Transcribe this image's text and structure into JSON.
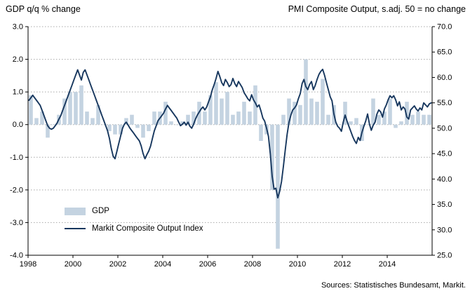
{
  "header": {
    "title_left": "GDP q/q % change",
    "title_right": "PMI Composite Output, s.adj. 50 = no change"
  },
  "legend": {
    "bar_label": "GDP",
    "line_label": "Markit Composite Output Index"
  },
  "footer": {
    "sources": "Sources: Statistisches Bundesamt, Markit."
  },
  "chart_data": {
    "type": "bar+line",
    "title": "GDP q/q % change vs PMI Composite Output",
    "colors": {
      "bar": "#c4d3e1",
      "line": "#17375e",
      "grid": "#a8a8a8",
      "axis": "#000000"
    },
    "left_axis": {
      "label": "GDP q/q % change",
      "max": 3.0,
      "min": -4.0,
      "ticks": [
        "3.0",
        "2.0",
        "1.0",
        "0.0",
        "-1.0",
        "-2.0",
        "-3.0",
        "-4.0"
      ]
    },
    "right_axis": {
      "label": "PMI Composite Output, s.adj. 50 = no change",
      "max": 70.0,
      "min": 25.0,
      "ticks": [
        "70.0",
        "65.0",
        "60.0",
        "55.0",
        "50.0",
        "45.0",
        "40.0",
        "35.0",
        "30.0",
        "25.0"
      ]
    },
    "x_axis": {
      "range": [
        1998,
        2016
      ],
      "ticks": [
        "1998",
        "2000",
        "2002",
        "2004",
        "2006",
        "2008",
        "2010",
        "2012",
        "2014"
      ]
    },
    "series_bar": {
      "name": "GDP",
      "unit": "q/q % change",
      "frequency": "quarterly",
      "start": 1998,
      "values": [
        0.9,
        0.2,
        0.4,
        -0.4,
        0.0,
        0.3,
        0.8,
        1.0,
        1.0,
        1.2,
        0.4,
        0.2,
        0.6,
        0.0,
        -0.2,
        -0.3,
        -0.3,
        0.2,
        0.3,
        -0.1,
        -0.4,
        -0.2,
        0.4,
        0.4,
        0.7,
        0.1,
        0.0,
        0.1,
        0.3,
        0.4,
        0.7,
        0.4,
        0.9,
        1.3,
        0.8,
        1.0,
        0.3,
        0.4,
        0.7,
        0.4,
        1.2,
        -0.5,
        -0.3,
        -2.0,
        -3.8,
        0.3,
        0.8,
        0.7,
        0.6,
        2.0,
        0.8,
        0.7,
        1.4,
        0.3,
        0.6,
        0.0,
        0.7,
        0.1,
        0.2,
        -0.5,
        0.0,
        0.8,
        0.3,
        0.4,
        0.8,
        -0.1,
        0.1,
        0.7,
        0.3,
        0.4,
        0.3,
        0.3
      ]
    },
    "series_line": {
      "name": "Markit Composite Output Index",
      "unit": "index, 50 = no change",
      "frequency": "monthly",
      "start": 1998,
      "values": [
        55.5,
        56.0,
        56.5,
        56.0,
        55.5,
        55.0,
        54.5,
        53.5,
        52.5,
        51.5,
        50.5,
        50.0,
        49.8,
        50.0,
        50.5,
        51.0,
        51.8,
        52.5,
        53.5,
        54.5,
        55.5,
        56.5,
        57.5,
        58.5,
        59.5,
        60.5,
        61.5,
        60.5,
        59.5,
        61.0,
        61.5,
        60.5,
        59.5,
        58.5,
        57.5,
        56.5,
        55.5,
        54.5,
        53.5,
        52.5,
        51.5,
        50.5,
        49.5,
        48.0,
        46.0,
        44.5,
        44.0,
        45.5,
        47.0,
        48.5,
        50.0,
        50.8,
        51.2,
        50.6,
        50.0,
        49.5,
        49.0,
        48.5,
        48.0,
        47.5,
        46.5,
        45.0,
        44.0,
        44.8,
        45.5,
        46.5,
        48.0,
        49.5,
        50.5,
        51.5,
        52.0,
        52.5,
        53.0,
        53.8,
        54.5,
        54.0,
        53.5,
        53.0,
        52.5,
        52.0,
        51.2,
        50.5,
        50.8,
        51.2,
        50.6,
        51.2,
        50.4,
        50.0,
        50.8,
        51.8,
        52.6,
        53.2,
        53.8,
        54.2,
        53.6,
        54.2,
        55.2,
        56.2,
        57.6,
        58.6,
        59.8,
        61.2,
        60.2,
        59.0,
        58.4,
        59.6,
        59.0,
        58.2,
        58.6,
        59.8,
        58.8,
        58.2,
        59.2,
        58.6,
        58.0,
        57.0,
        56.4,
        55.8,
        55.4,
        56.6,
        55.6,
        55.0,
        54.2,
        54.6,
        53.4,
        52.0,
        51.4,
        50.0,
        48.4,
        45.0,
        40.5,
        38.0,
        38.2,
        36.3,
        37.6,
        39.5,
        42.5,
        45.8,
        48.8,
        51.2,
        52.6,
        53.6,
        54.0,
        54.6,
        55.8,
        56.8,
        58.8,
        59.6,
        58.2,
        57.6,
        58.6,
        59.2,
        57.6,
        58.4,
        59.6,
        60.6,
        61.2,
        61.6,
        60.4,
        59.0,
        57.6,
        56.2,
        55.4,
        52.8,
        51.2,
        50.4,
        50.0,
        49.4,
        51.2,
        52.6,
        51.4,
        50.4,
        49.4,
        48.4,
        47.6,
        47.0,
        48.2,
        47.6,
        49.2,
        50.4,
        51.4,
        52.8,
        50.8,
        49.6,
        50.6,
        51.2,
        52.8,
        53.6,
        53.2,
        52.2,
        53.8,
        54.6,
        55.6,
        56.4,
        56.0,
        56.4,
        55.6,
        54.4,
        55.2,
        53.6,
        54.2,
        53.8,
        52.2,
        51.8,
        53.6,
        54.0,
        54.4,
        53.8,
        53.4,
        54.0,
        53.6,
        55.0,
        54.6,
        54.2,
        54.8,
        55.0
      ]
    }
  }
}
